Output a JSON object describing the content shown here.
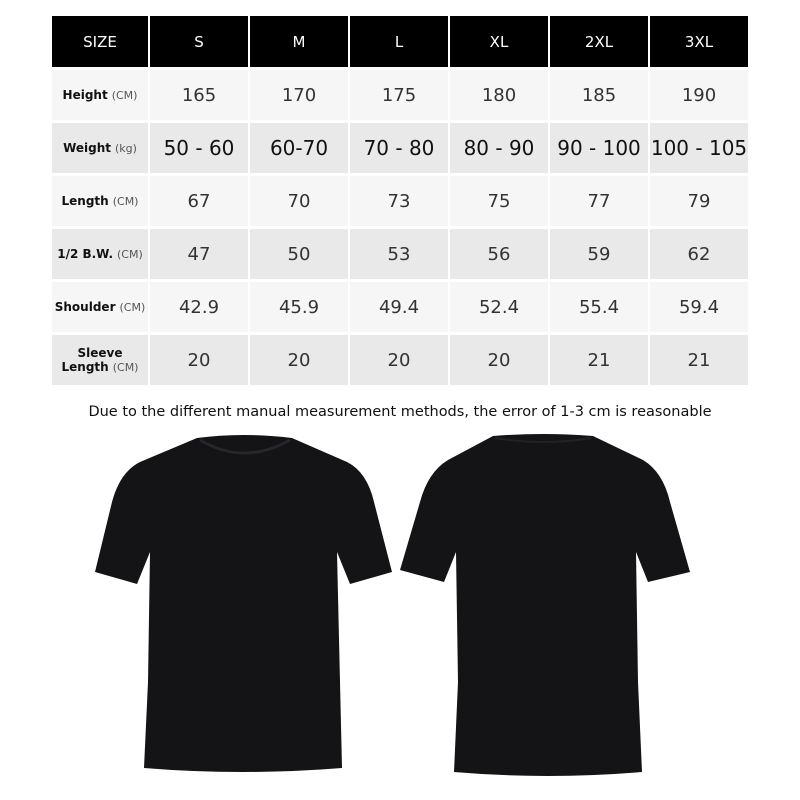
{
  "table": {
    "header": [
      "SIZE",
      "S",
      "M",
      "L",
      "XL",
      "2XL",
      "3XL"
    ],
    "rows": [
      {
        "label": "Height",
        "unit": "(CM)",
        "values": [
          "165",
          "170",
          "175",
          "180",
          "185",
          "190"
        ]
      },
      {
        "label": "Weight",
        "unit": "(kg)",
        "values": [
          "50 - 60",
          "60-70",
          "70 - 80",
          "80 - 90",
          "90 - 100",
          "100 - 105"
        ]
      },
      {
        "label": "Length",
        "unit": "(CM)",
        "values": [
          "67",
          "70",
          "73",
          "75",
          "77",
          "79"
        ]
      },
      {
        "label": "1/2 B.W.",
        "unit": "(CM)",
        "values": [
          "47",
          "50",
          "53",
          "56",
          "59",
          "62"
        ]
      },
      {
        "label": "Shoulder",
        "unit": "(CM)",
        "values": [
          "42.9",
          "45.9",
          "49.4",
          "52.4",
          "55.4",
          "59.4"
        ]
      },
      {
        "label": "Sleeve Length",
        "unit": "(CM)",
        "values": [
          "20",
          "20",
          "20",
          "20",
          "21",
          "21"
        ]
      }
    ]
  },
  "note": "Due to the different manual measurement methods, the error of 1-3 cm is reasonable",
  "colors": {
    "header_bg": "#000000",
    "shirt": "#141417"
  }
}
